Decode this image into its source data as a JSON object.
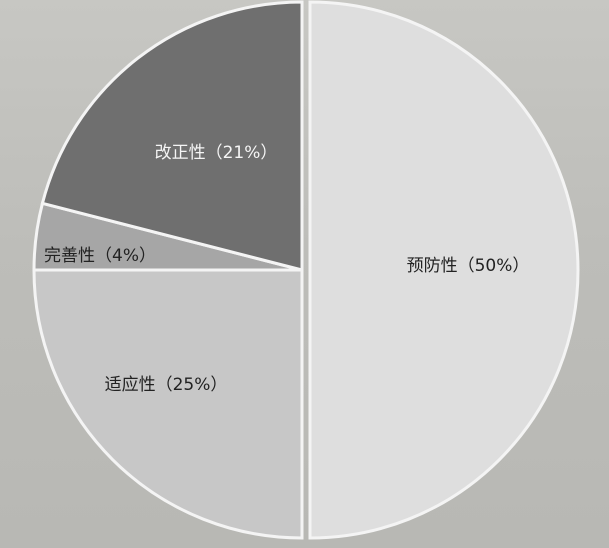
{
  "chart_data": {
    "type": "pie",
    "categories": [
      "预防性",
      "改正性",
      "完善性",
      "适应性"
    ],
    "values": [
      50,
      21,
      4,
      25
    ],
    "labels": [
      "预防性（50%）",
      "改正性（21%）",
      "完善性（4%）",
      "适应性（25%）"
    ],
    "colors": [
      "#dedede",
      "#6f6f6f",
      "#a6a6a6",
      "#c7c7c7"
    ],
    "label_colors": [
      "#222222",
      "#f5f5f5",
      "#222222",
      "#222222"
    ],
    "title": ""
  }
}
